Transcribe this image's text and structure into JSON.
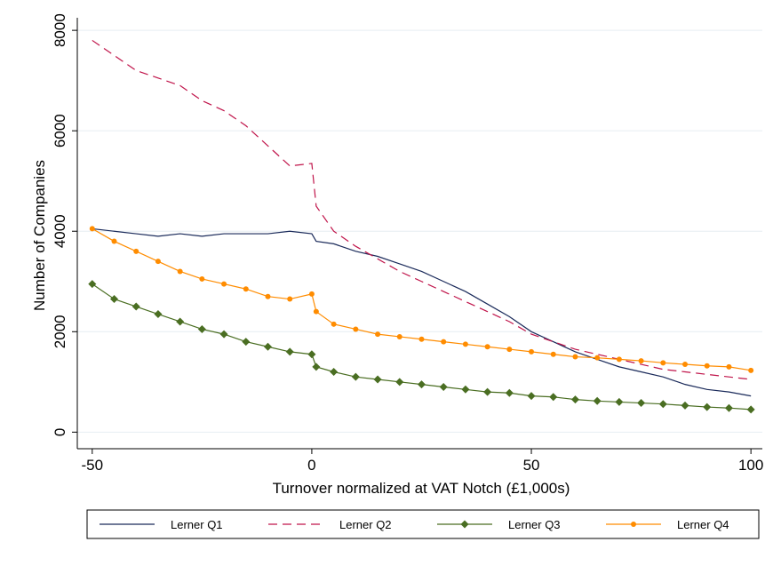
{
  "chart_data": {
    "type": "line",
    "x_label": "Turnover normalized at VAT Notch (£1,000s)",
    "y_label": "Number of Companies",
    "x": [
      -50,
      -45,
      -40,
      -35,
      -30,
      -25,
      -20,
      -15,
      -10,
      -5,
      0,
      1,
      5,
      10,
      15,
      20,
      25,
      30,
      35,
      40,
      45,
      50,
      55,
      60,
      65,
      70,
      75,
      80,
      85,
      90,
      95,
      100
    ],
    "series": [
      {
        "name": "Lerner Q1",
        "color": "#1a2a5a",
        "dash": false,
        "marker": "none",
        "values": [
          4050,
          4000,
          3950,
          3900,
          3950,
          3900,
          3950,
          3950,
          3950,
          4000,
          3950,
          3800,
          3750,
          3600,
          3500,
          3350,
          3200,
          3000,
          2800,
          2550,
          2300,
          2000,
          1800,
          1600,
          1450,
          1300,
          1200,
          1100,
          950,
          850,
          800,
          720
        ]
      },
      {
        "name": "Lerner Q2",
        "color": "#c0144a",
        "dash": true,
        "marker": "none",
        "values": [
          7800,
          7500,
          7200,
          7050,
          6900,
          6600,
          6400,
          6100,
          5700,
          5300,
          5350,
          4500,
          4000,
          3700,
          3450,
          3200,
          3000,
          2800,
          2600,
          2400,
          2200,
          1950,
          1800,
          1650,
          1550,
          1450,
          1350,
          1250,
          1200,
          1150,
          1100,
          1050
        ]
      },
      {
        "name": "Lerner Q3",
        "color": "#4a6e22",
        "dash": false,
        "marker": "diamond",
        "values": [
          2950,
          2650,
          2500,
          2350,
          2200,
          2050,
          1950,
          1800,
          1700,
          1600,
          1550,
          1300,
          1200,
          1100,
          1050,
          1000,
          950,
          900,
          850,
          800,
          780,
          720,
          700,
          650,
          620,
          600,
          580,
          560,
          530,
          500,
          480,
          450
        ]
      },
      {
        "name": "Lerner Q4",
        "color": "#ff8c00",
        "dash": false,
        "marker": "circle",
        "values": [
          4050,
          3800,
          3600,
          3400,
          3200,
          3050,
          2950,
          2850,
          2700,
          2650,
          2750,
          2400,
          2150,
          2050,
          1950,
          1900,
          1850,
          1800,
          1750,
          1700,
          1650,
          1600,
          1550,
          1500,
          1480,
          1450,
          1420,
          1380,
          1350,
          1320,
          1300,
          1230
        ]
      }
    ],
    "xlim": [
      -53.4,
      102.6
    ],
    "xticks": [
      -50,
      0,
      50,
      100
    ],
    "ylim": [
      -330,
      8250
    ],
    "yticks": [
      0,
      2000,
      4000,
      6000,
      8000
    ],
    "grid": true,
    "legend": "bottom"
  }
}
